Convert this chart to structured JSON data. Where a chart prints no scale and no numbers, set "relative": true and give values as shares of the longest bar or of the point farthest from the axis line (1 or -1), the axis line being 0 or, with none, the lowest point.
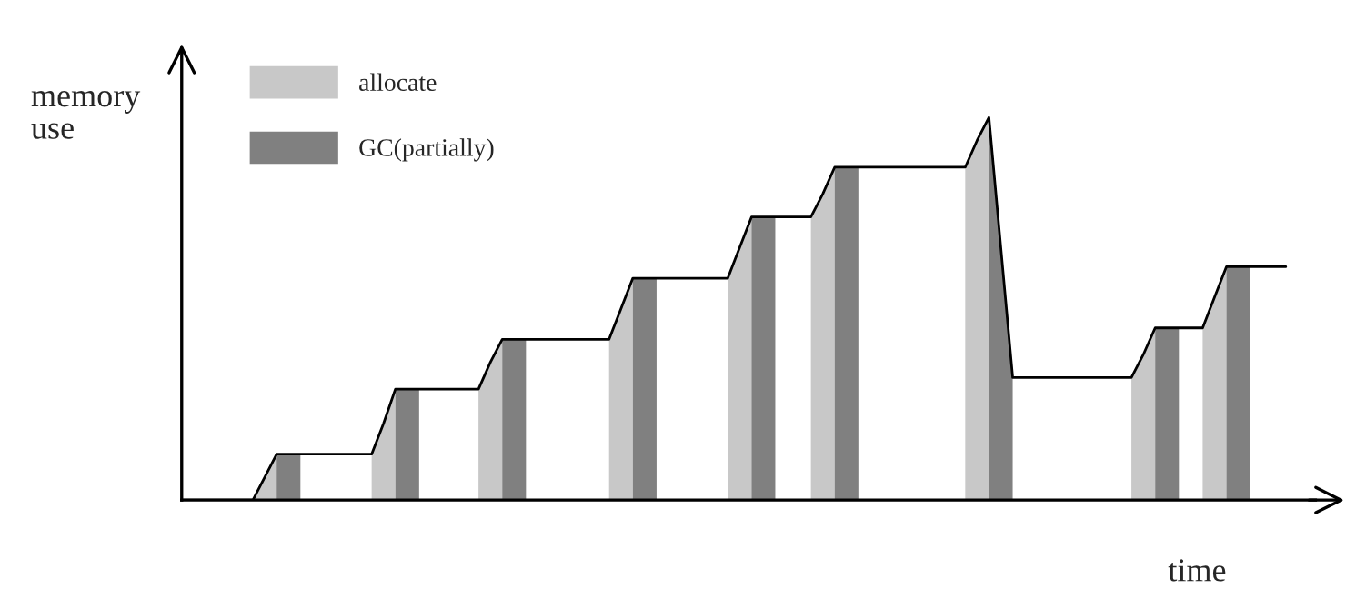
{
  "chart_data": {
    "type": "line",
    "relative": true,
    "xlabel": "time",
    "ylabel": "memory\nuse",
    "legend": "top left",
    "grid": false,
    "categories": [
      null,
      null,
      null,
      null,
      null,
      null,
      null,
      null,
      null,
      null,
      null,
      null,
      null,
      null,
      null,
      null,
      null,
      null,
      null,
      null,
      null,
      null,
      null,
      null,
      null,
      null,
      null,
      null,
      null,
      null,
      null,
      null,
      null,
      null,
      null,
      null,
      null,
      null,
      null,
      null,
      null,
      null,
      null,
      null,
      null,
      null,
      null,
      null,
      null,
      null,
      null,
      null,
      null,
      null,
      null,
      null,
      null,
      null,
      null,
      null,
      null,
      null,
      null,
      null,
      null,
      null,
      null,
      null,
      null,
      null,
      null,
      null,
      null,
      null,
      null,
      null,
      null,
      null,
      null,
      null,
      null,
      null,
      null,
      null,
      null,
      null,
      null,
      null,
      null,
      null,
      null,
      null,
      null,
      null
    ],
    "series": [
      {
        "name": "allocate",
        "type": "area",
        "color": "#c8c8c8",
        "values": [
          null,
          null,
          null,
          null,
          null,
          null,
          0,
          0.06,
          0.12,
          null,
          null,
          null,
          null,
          null,
          null,
          null,
          0.12,
          0.2,
          0.29,
          null,
          null,
          null,
          null,
          null,
          null,
          0.29,
          0.36,
          0.42,
          null,
          null,
          null,
          null,
          null,
          null,
          null,
          null,
          0.42,
          0.5,
          0.58,
          null,
          null,
          null,
          null,
          null,
          null,
          null,
          0.58,
          0.66,
          0.74,
          null,
          null,
          null,
          null,
          0.74,
          0.8,
          0.87,
          null,
          null,
          null,
          null,
          null,
          null,
          null,
          null,
          null,
          null,
          0.87,
          0.94,
          1,
          null,
          null,
          null,
          null,
          null,
          null,
          null,
          null,
          null,
          null,
          null,
          0.32,
          0.38,
          0.45,
          null,
          null,
          null,
          0.45,
          0.53,
          0.61,
          null,
          null,
          null,
          null,
          null
        ]
      },
      {
        "name": "GC(partially)",
        "type": "area",
        "color": "#808080",
        "values": [
          null,
          null,
          null,
          null,
          null,
          null,
          null,
          null,
          0.12,
          0.12,
          0.12,
          null,
          null,
          null,
          null,
          null,
          null,
          null,
          0.29,
          0.29,
          0.29,
          null,
          null,
          null,
          null,
          null,
          null,
          0.42,
          0.42,
          0.42,
          null,
          null,
          null,
          null,
          null,
          null,
          null,
          null,
          0.58,
          0.58,
          0.58,
          null,
          null,
          null,
          null,
          null,
          null,
          null,
          0.74,
          0.74,
          0.74,
          null,
          null,
          null,
          null,
          0.87,
          0.87,
          0.87,
          null,
          null,
          null,
          null,
          null,
          null,
          null,
          null,
          null,
          null,
          1,
          0.66,
          0.32,
          null,
          null,
          null,
          null,
          null,
          null,
          null,
          null,
          null,
          null,
          null,
          0.45,
          0.45,
          0.45,
          null,
          null,
          null,
          0.61,
          0.61,
          0.61,
          null,
          null,
          null
        ]
      },
      {
        "color": "#000000",
        "values": [
          0,
          0,
          0,
          0,
          0,
          0,
          0,
          0.06,
          0.12,
          0.12,
          0.12,
          0.12,
          0.12,
          0.12,
          0.12,
          0.12,
          0.12,
          0.2,
          0.29,
          0.29,
          0.29,
          0.29,
          0.29,
          0.29,
          0.29,
          0.29,
          0.36,
          0.42,
          0.42,
          0.42,
          0.42,
          0.42,
          0.42,
          0.42,
          0.42,
          0.42,
          0.42,
          0.5,
          0.58,
          0.58,
          0.58,
          0.58,
          0.58,
          0.58,
          0.58,
          0.58,
          0.58,
          0.66,
          0.74,
          0.74,
          0.74,
          0.74,
          0.74,
          0.74,
          0.8,
          0.87,
          0.87,
          0.87,
          0.87,
          0.87,
          0.87,
          0.87,
          0.87,
          0.87,
          0.87,
          0.87,
          0.87,
          0.94,
          1,
          0.66,
          0.32,
          0.32,
          0.32,
          0.32,
          0.32,
          0.32,
          0.32,
          0.32,
          0.32,
          0.32,
          0.32,
          0.38,
          0.45,
          0.45,
          0.45,
          0.45,
          0.45,
          0.53,
          0.61,
          0.61,
          0.61,
          0.61,
          0.61,
          0.61
        ]
      }
    ]
  }
}
